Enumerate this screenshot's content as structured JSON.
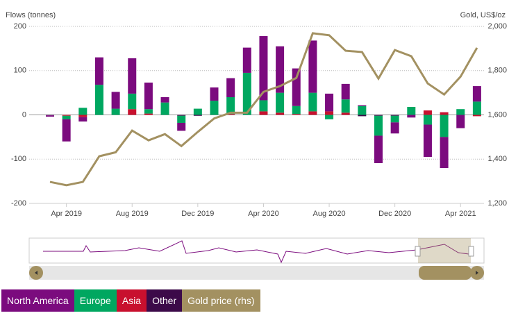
{
  "chart_data": {
    "type": "bar",
    "stacked": true,
    "y_label": "Flows (tonnes)",
    "y2_label": "Gold, US$/oz",
    "categories": [
      null,
      "Apr 2019",
      null,
      null,
      null,
      "Aug 2019",
      null,
      null,
      null,
      "Dec 2019",
      null,
      null,
      null,
      "Apr 2020",
      null,
      null,
      null,
      "Aug 2020",
      null,
      null,
      null,
      "Dec 2020",
      null,
      null,
      null,
      "Apr 2021",
      null
    ],
    "series": [
      {
        "name": "North America",
        "color": "#7b0b7e",
        "values": [
          -3,
          -50,
          -10,
          62,
          38,
          80,
          60,
          12,
          -18,
          0,
          30,
          43,
          57,
          145,
          105,
          85,
          118,
          40,
          35,
          2,
          -62,
          -25,
          -6,
          -73,
          -70,
          -30,
          35
        ]
      },
      {
        "name": "Europe",
        "color": "#00a760",
        "values": [
          0,
          -8,
          16,
          68,
          14,
          35,
          10,
          28,
          -16,
          14,
          32,
          38,
          95,
          25,
          45,
          18,
          42,
          -10,
          30,
          20,
          -45,
          -15,
          18,
          -22,
          -50,
          13,
          30
        ]
      },
      {
        "name": "Asia",
        "color": "#c8102e",
        "values": [
          0,
          -2,
          -5,
          0,
          0,
          13,
          3,
          0,
          0,
          0,
          0,
          2,
          0,
          8,
          5,
          2,
          8,
          8,
          5,
          0,
          0,
          0,
          0,
          10,
          6,
          0,
          -3
        ]
      },
      {
        "name": "Other",
        "color": "#3c0a49",
        "values": [
          -1,
          0,
          0,
          0,
          0,
          0,
          0,
          0,
          -2,
          -2,
          0,
          0,
          0,
          0,
          0,
          0,
          0,
          0,
          0,
          -3,
          -2,
          -2,
          0,
          0,
          0,
          0,
          0
        ]
      },
      {
        "name": "Gold price (rhs)",
        "color": "#a39161",
        "type": "line",
        "axis": "y2",
        "values": [
          1297,
          1282,
          1297,
          1413,
          1431,
          1529,
          1485,
          1513,
          1459,
          1523,
          1584,
          1610,
          1610,
          1704,
          1730,
          1767,
          1969,
          1960,
          1890,
          1884,
          1764,
          1893,
          1865,
          1742,
          1692,
          1773,
          1903
        ]
      }
    ],
    "ylim": [
      -200,
      200
    ],
    "yticks": [
      -200,
      -100,
      0,
      100,
      200
    ],
    "y2lim": [
      1200,
      2000
    ],
    "y2ticks": [
      {
        "value": 1200,
        "label": "1,200"
      },
      {
        "value": 1400,
        "label": "1,400"
      },
      {
        "value": 1600,
        "label": "1,600"
      },
      {
        "value": 1800,
        "label": "1,800"
      },
      {
        "value": 2000,
        "label": "2,000"
      }
    ],
    "grid": true
  }
}
